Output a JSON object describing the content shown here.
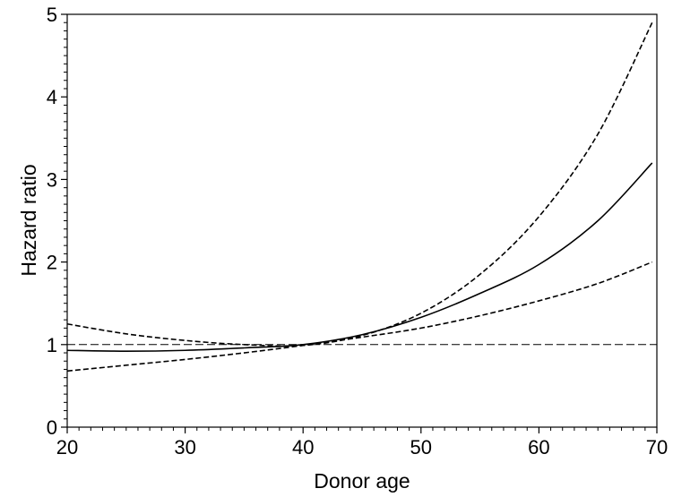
{
  "chart_data": {
    "type": "line",
    "title": "",
    "xlabel": "Donor age",
    "ylabel": "Hazard ratio",
    "xlim": [
      20,
      70
    ],
    "ylim": [
      0,
      5
    ],
    "x_ticks": [
      20,
      30,
      40,
      50,
      60,
      70
    ],
    "y_ticks": [
      0,
      1,
      2,
      3,
      4,
      5
    ],
    "x_tick_labels": [
      "20",
      "30",
      "40",
      "50",
      "60",
      "70"
    ],
    "y_tick_labels": [
      "0",
      "1",
      "2",
      "3",
      "4",
      "5"
    ],
    "grid": false,
    "legend": "none",
    "series": [
      {
        "style": "solid",
        "color": "#000000",
        "x": [
          20,
          25,
          30,
          35,
          40,
          45,
          50,
          55,
          60,
          65,
          70
        ],
        "y": [
          0.93,
          0.92,
          0.93,
          0.96,
          1.0,
          1.12,
          1.33,
          1.62,
          1.97,
          2.5,
          3.2
        ]
      },
      {
        "style": "dashed",
        "color": "#000000",
        "x": [
          20,
          25,
          30,
          35,
          40,
          45,
          50,
          55,
          60,
          65,
          70
        ],
        "y": [
          1.25,
          1.13,
          1.05,
          1.0,
          0.99,
          1.11,
          1.38,
          1.85,
          2.55,
          3.55,
          4.9
        ]
      },
      {
        "style": "dashed",
        "color": "#000000",
        "x": [
          20,
          25,
          30,
          35,
          40,
          45,
          50,
          55,
          60,
          65,
          70
        ],
        "y": [
          0.68,
          0.75,
          0.82,
          0.9,
          0.99,
          1.09,
          1.2,
          1.35,
          1.53,
          1.74,
          2.0
        ]
      }
    ],
    "reference_lines": [
      {
        "axis": "y",
        "value": 1,
        "style": "dashed"
      }
    ]
  }
}
